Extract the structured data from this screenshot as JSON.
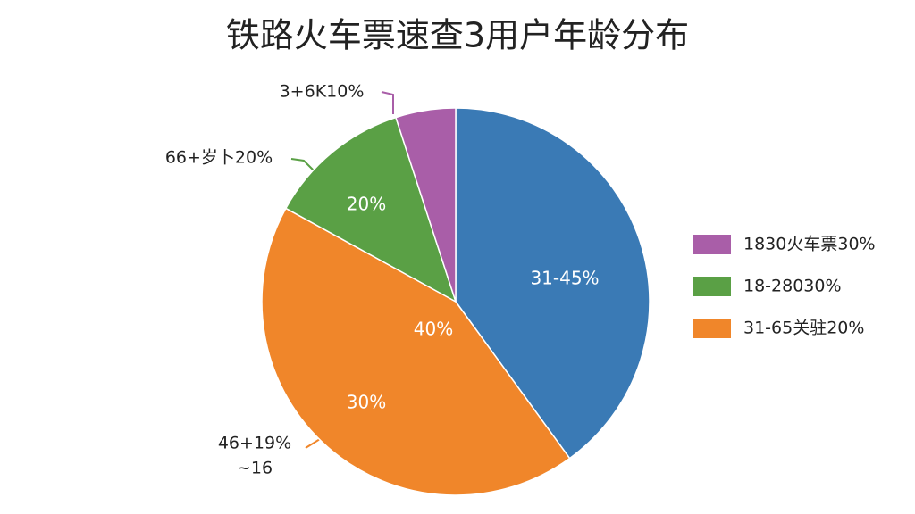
{
  "chart_data": {
    "type": "pie",
    "title": "铁路火车票速查3用户年龄分布",
    "categories": [
      null,
      "31-65关驻20%",
      "18-28030%",
      "1830火车票30%"
    ],
    "values": [
      40,
      43,
      12,
      5
    ],
    "colors": [
      "#3a7ab5",
      "#f0862a",
      "#5aa045",
      "#a95ea8"
    ],
    "legend": "right",
    "legend_order": [
      3,
      2,
      1
    ],
    "inner_labels": [
      "31-45%",
      "40%",
      "30%",
      "20%"
    ],
    "outer_labels": [
      "3+6K10%",
      "66+岁卜20%",
      "46+19%",
      "~16"
    ]
  }
}
